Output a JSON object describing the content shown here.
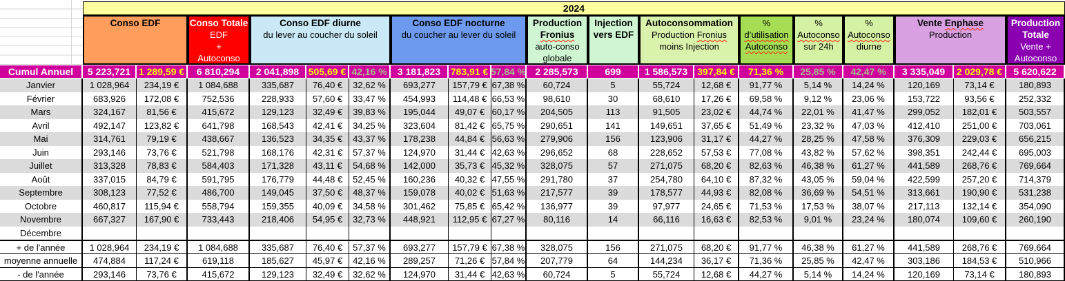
{
  "sheet": {
    "year_band": "2024",
    "cumul_label": "Cumul Annuel",
    "colors": {
      "band": "#FFFF9E",
      "orange": "#FF9E5C",
      "red": "#FF0000",
      "lightblue": "#C9E9F7",
      "blue": "#6D9AEF",
      "mint": "#CFF5D2",
      "paleyg": "#D9F3AD",
      "apple": "#A5DE55",
      "paleg": "#D4F1A4",
      "plum": "#D9A1E2",
      "purple": "#8A00B0",
      "magenta": "#D0009C",
      "stripe": "#DBDBDB",
      "euro_text": "#FFFF00",
      "pct_text": "#A9BE8F",
      "white_text": "#FFFFFF"
    },
    "header_groups": [
      {
        "id": "conso-edf",
        "cols": [
          1,
          2
        ],
        "bg": "orange",
        "fg": "#000000",
        "lines": [
          [
            {
              "t": "Conso EDF",
              "b": true
            }
          ]
        ]
      },
      {
        "id": "conso-totale",
        "cols": [
          3,
          3
        ],
        "bg": "red",
        "fg": "#FFFFFF",
        "lines": [
          [
            {
              "t": "Conso Totale",
              "b": true
            }
          ],
          [
            {
              "t": "EDF"
            }
          ],
          [
            {
              "t": "+"
            }
          ],
          [
            {
              "t": "Autoconso",
              "sq": true
            }
          ]
        ]
      },
      {
        "id": "conso-edf-diurne",
        "cols": [
          4,
          6
        ],
        "bg": "lightblue",
        "fg": "#000000",
        "lines": [
          [
            {
              "t": "Conso EDF diurne",
              "b": true
            }
          ],
          [
            {
              "t": "du lever au coucher du soleil"
            }
          ]
        ]
      },
      {
        "id": "conso-edf-nocturne",
        "cols": [
          7,
          9
        ],
        "bg": "blue",
        "fg": "#000000",
        "lines": [
          [
            {
              "t": "Conso EDF nocturne",
              "b": true
            }
          ],
          [
            {
              "t": "du coucher au lever du soleil"
            }
          ]
        ]
      },
      {
        "id": "production-fronius",
        "cols": [
          10,
          10
        ],
        "bg": "mint",
        "fg": "#000000",
        "lines": [
          [
            {
              "t": "Production",
              "b": true
            }
          ],
          [
            {
              "t": "Fronius",
              "b": true,
              "sq": true
            }
          ],
          [
            {
              "t": "auto-conso"
            }
          ],
          [
            {
              "t": "globale"
            }
          ]
        ]
      },
      {
        "id": "injection-vers-edf",
        "cols": [
          11,
          11
        ],
        "bg": "mint",
        "fg": "#000000",
        "lines": [
          [
            {
              "t": "Injection",
              "b": true
            }
          ],
          [
            {
              "t": "vers EDF",
              "b": true
            }
          ]
        ]
      },
      {
        "id": "autoconsommation",
        "cols": [
          12,
          13
        ],
        "bg": "paleyg",
        "fg": "#000000",
        "lines": [
          [
            {
              "t": "Autoconsommation",
              "b": true
            }
          ],
          [
            {
              "t": "Production "
            },
            {
              "t": "Fronius",
              "sq": true
            }
          ],
          [
            {
              "t": "moins Injection"
            }
          ]
        ]
      },
      {
        "id": "pct-utilisation-autoconso",
        "cols": [
          14,
          14
        ],
        "bg": "apple",
        "fg": "#000000",
        "lines": [
          [
            {
              "t": "%"
            }
          ],
          [
            {
              "t": "d’utilisation",
              "sq": true
            }
          ],
          [
            {
              "t": "Autoconso",
              "sq": true
            }
          ]
        ]
      },
      {
        "id": "pct-autoconso-24h",
        "cols": [
          15,
          15
        ],
        "bg": "paleg",
        "fg": "#000000",
        "lines": [
          [
            {
              "t": "%"
            }
          ],
          [
            {
              "t": "Autoconso",
              "sq": true
            }
          ],
          [
            {
              "t": "sur 24h"
            }
          ]
        ]
      },
      {
        "id": "pct-autoconso-diurne",
        "cols": [
          16,
          16
        ],
        "bg": "paleg",
        "fg": "#000000",
        "lines": [
          [
            {
              "t": "%"
            }
          ],
          [
            {
              "t": "Autoconso",
              "sq": true
            }
          ],
          [
            {
              "t": "diurne"
            }
          ]
        ]
      },
      {
        "id": "vente-enphase",
        "cols": [
          17,
          18
        ],
        "bg": "plum",
        "fg": "#000000",
        "lines": [
          [
            {
              "t": "Vente ",
              "b": true
            },
            {
              "t": "Enphase",
              "b": true,
              "sq": true
            }
          ],
          [
            {
              "t": "Production"
            }
          ]
        ]
      },
      {
        "id": "production-totale",
        "cols": [
          19,
          19
        ],
        "bg": "purple",
        "fg": "#FFFFFF",
        "lines": [
          [
            {
              "t": "Production",
              "b": true
            }
          ],
          [
            {
              "t": "Totale",
              "b": true
            }
          ],
          [
            {
              "t": "Vente +"
            }
          ],
          [
            {
              "t": "Autoconso",
              "sq": true
            }
          ]
        ]
      }
    ],
    "cumul_values": [
      "5 223,721",
      "1 289,59 €",
      "6 810,294",
      "2 041,898",
      "505,69 €",
      "42,16 %",
      "3 181,823",
      "783,91 €",
      "57,84 %",
      "2 285,573",
      "699",
      "1 586,573",
      "397,84 €",
      "71,36 %",
      "25,85 %",
      "42,47 %",
      "3 335,049",
      "2 029,78 €",
      "5 620,622"
    ],
    "months": [
      {
        "label": "Janvier",
        "values": [
          "1 028,964",
          "234,19 €",
          "1 084,688",
          "335,687",
          "76,40 €",
          "32,62 %",
          "693,277",
          "157,79 €",
          "67,38 %",
          "60,724",
          "5",
          "55,724",
          "12,68 €",
          "91,77 %",
          "5,14 %",
          "14,24 %",
          "120,169",
          "73,14 €",
          "180,893"
        ]
      },
      {
        "label": "Février",
        "values": [
          "683,926",
          "172,08 €",
          "752,536",
          "228,933",
          "57,60 €",
          "33,47 %",
          "454,993",
          "114,48 €",
          "66,53 %",
          "98,610",
          "30",
          "68,610",
          "17,26 €",
          "69,58 %",
          "9,12 %",
          "23,06 %",
          "153,722",
          "93,56 €",
          "252,332"
        ]
      },
      {
        "label": "Mars",
        "values": [
          "324,167",
          "81,56 €",
          "415,672",
          "129,123",
          "32,49 €",
          "39,83 %",
          "195,044",
          "49,07 €",
          "60,17 %",
          "204,505",
          "113",
          "91,505",
          "23,02 €",
          "44,74 %",
          "22,01 %",
          "41,47 %",
          "299,052",
          "182,01 €",
          "503,557"
        ]
      },
      {
        "label": "Avril",
        "values": [
          "492,147",
          "123,82 €",
          "641,798",
          "168,543",
          "42,41 €",
          "34,25 %",
          "323,604",
          "81,42 €",
          "65,75 %",
          "290,651",
          "141",
          "149,651",
          "37,65 €",
          "51,49 %",
          "23,32 %",
          "47,03 %",
          "412,410",
          "251,00 €",
          "703,061"
        ]
      },
      {
        "label": "Mai",
        "values": [
          "314,761",
          "79,19 €",
          "438,667",
          "136,523",
          "34,35 €",
          "43,37 %",
          "178,238",
          "44,84 €",
          "56,63 %",
          "279,906",
          "156",
          "123,906",
          "31,17 €",
          "44,27 %",
          "28,25 %",
          "47,58 %",
          "376,309",
          "229,03 €",
          "656,215"
        ]
      },
      {
        "label": "Juin",
        "values": [
          "293,146",
          "73,76 €",
          "521,798",
          "168,176",
          "42,31 €",
          "57,37 %",
          "124,970",
          "31,44 €",
          "42,63 %",
          "296,652",
          "68",
          "228,652",
          "57,53 €",
          "77,08 %",
          "43,82 %",
          "57,62 %",
          "398,351",
          "242,44 €",
          "695,003"
        ]
      },
      {
        "label": "Juillet",
        "values": [
          "313,328",
          "78,83 €",
          "584,403",
          "171,328",
          "43,11 €",
          "54,68 %",
          "142,000",
          "35,73 €",
          "45,32 %",
          "328,075",
          "57",
          "271,075",
          "68,20 €",
          "82,63 %",
          "46,38 %",
          "61,27 %",
          "441,589",
          "268,76 €",
          "769,664"
        ]
      },
      {
        "label": "Août",
        "values": [
          "337,015",
          "84,79 €",
          "591,795",
          "176,779",
          "44,48 €",
          "52,45 %",
          "160,236",
          "40,32 €",
          "47,55 %",
          "291,780",
          "37",
          "254,780",
          "64,10 €",
          "87,32 %",
          "43,05 %",
          "59,04 %",
          "422,599",
          "257,20 €",
          "714,379"
        ]
      },
      {
        "label": "Septembre",
        "values": [
          "308,123",
          "77,52 €",
          "486,700",
          "149,045",
          "37,50 €",
          "48,37 %",
          "159,078",
          "40,02 €",
          "51,63 %",
          "217,577",
          "39",
          "178,577",
          "44,93 €",
          "82,08 %",
          "36,69 %",
          "54,51 %",
          "313,661",
          "190,90 €",
          "531,238"
        ]
      },
      {
        "label": "Octobre",
        "values": [
          "460,817",
          "115,94 €",
          "558,794",
          "159,355",
          "40,09 €",
          "34,58 %",
          "301,462",
          "75,85 €",
          "65,42 %",
          "136,977",
          "39",
          "97,977",
          "24,65 €",
          "71,53 %",
          "17,53 %",
          "38,07 %",
          "217,113",
          "132,14 €",
          "354,090"
        ]
      },
      {
        "label": "Novembre",
        "values": [
          "667,327",
          "167,90 €",
          "733,443",
          "218,406",
          "54,95 €",
          "32,73 %",
          "448,921",
          "112,95 €",
          "67,27 %",
          "80,116",
          "14",
          "66,116",
          "16,63 €",
          "82,53 %",
          "9,01 %",
          "23,24 %",
          "180,074",
          "109,60 €",
          "260,190"
        ]
      },
      {
        "label": "Décembre",
        "values": [
          "",
          "",
          "",
          "",
          "",
          "",
          "",
          "",
          "",
          "",
          "",
          "",
          "",
          "",
          "",
          "",
          "",
          "",
          ""
        ]
      }
    ],
    "summary": [
      {
        "label": "+ de l'année",
        "values": [
          "1 028,964",
          "234,19 €",
          "1 084,688",
          "335,687",
          "76,40 €",
          "57,37 %",
          "693,277",
          "157,79 €",
          "67,38 %",
          "328,075",
          "156",
          "271,075",
          "68,20 €",
          "91,77 %",
          "46,38 %",
          "61,27 %",
          "441,589",
          "268,76 €",
          "769,664"
        ]
      },
      {
        "label": "moyenne annuelle",
        "values": [
          "474,884",
          "117,24 €",
          "619,118",
          "185,627",
          "45,97 €",
          "42,16 %",
          "289,257",
          "71,26 €",
          "57,84 %",
          "207,779",
          "64",
          "144,234",
          "36,17 €",
          "71,36 %",
          "25,85 %",
          "42,47 %",
          "303,186",
          "184,53 €",
          "510,966"
        ]
      },
      {
        "label": "- de l'année",
        "values": [
          "293,146",
          "73,76 €",
          "415,672",
          "129,123",
          "32,49 €",
          "32,62 %",
          "124,970",
          "31,44 €",
          "42,63 %",
          "60,724",
          "5",
          "55,724",
          "12,68 €",
          "44,27 %",
          "5,14 %",
          "14,24 %",
          "120,169",
          "73,14 €",
          "180,893"
        ]
      }
    ]
  }
}
